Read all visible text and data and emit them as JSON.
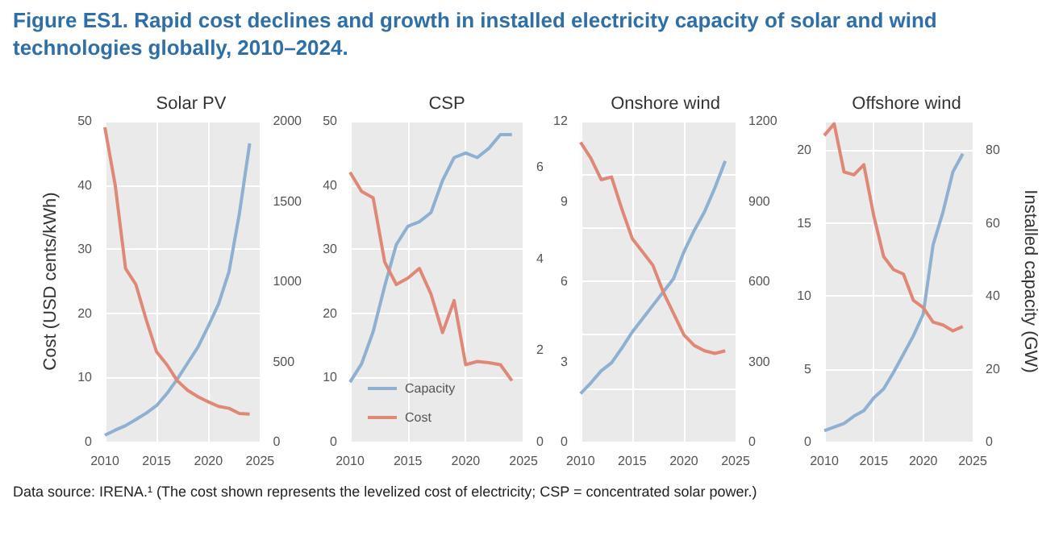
{
  "chart_data": [
    {
      "type": "line",
      "title": "Solar PV",
      "ylabel": "Cost (USD cents/kWh)",
      "annotations": [
        "Figure ES1. Rapid cost declines and growth in installed electricity capacity of solar and wind technologies globally, 2010–2024.",
        "Data source: IRENA.¹ (The cost shown represents the levelized cost of electricity; CSP = concentrated solar power.)"
      ],
      "x": [
        2010,
        2011,
        2012,
        2013,
        2014,
        2015,
        2016,
        2017,
        2018,
        2019,
        2020,
        2021,
        2022,
        2023,
        2024
      ],
      "xlim": [
        2010,
        2025
      ],
      "xticks": [
        2010,
        2015,
        2020,
        2025
      ],
      "ylim": [
        0,
        50
      ],
      "yticks": [
        0,
        10,
        20,
        30,
        40,
        50
      ],
      "y2lim": [
        0,
        2000
      ],
      "y2ticks": [
        0,
        500,
        1000,
        1500,
        2000
      ],
      "grid": true,
      "legend": false,
      "series": [
        {
          "color": "#8fb0d0",
          "axis": "y2",
          "values": [
            40,
            72,
            100,
            138,
            178,
            225,
            300,
            390,
            490,
            590,
            720,
            860,
            1060,
            1420,
            1860
          ]
        },
        {
          "color": "#e08878",
          "values": [
            49,
            40,
            27,
            24.5,
            19,
            14,
            12,
            9.5,
            8,
            7,
            6.2,
            5.5,
            5.2,
            4.4,
            4.3
          ]
        }
      ]
    },
    {
      "type": "line",
      "title": "CSP",
      "x": [
        2010,
        2011,
        2012,
        2013,
        2014,
        2015,
        2016,
        2017,
        2018,
        2019,
        2020,
        2021,
        2022,
        2023,
        2024
      ],
      "xlim": [
        2010,
        2025
      ],
      "xticks": [
        2010,
        2015,
        2020,
        2025
      ],
      "ylim": [
        0,
        50
      ],
      "yticks": [
        0,
        10,
        20,
        30,
        40,
        50
      ],
      "y2lim": [
        0,
        7
      ],
      "y2ticks": [
        0,
        2,
        4,
        6
      ],
      "grid": true,
      "legend": "bottom left",
      "series": [
        {
          "name": "Capacity",
          "color": "#8fb0d0",
          "axis": "y2",
          "values": [
            1.3,
            1.7,
            2.4,
            3.4,
            4.3,
            4.7,
            4.8,
            5.0,
            5.7,
            6.2,
            6.3,
            6.2,
            6.4,
            6.7,
            6.7
          ]
        },
        {
          "name": "Cost",
          "color": "#e08878",
          "values": [
            42,
            39,
            38,
            28,
            24.5,
            25.5,
            27,
            23,
            17,
            22,
            12,
            12.5,
            12.3,
            12,
            9.5
          ]
        }
      ]
    },
    {
      "type": "line",
      "title": "Onshore wind",
      "x": [
        2010,
        2011,
        2012,
        2013,
        2014,
        2015,
        2016,
        2017,
        2018,
        2019,
        2020,
        2021,
        2022,
        2023,
        2024
      ],
      "xlim": [
        2010,
        2025
      ],
      "xticks": [
        2010,
        2015,
        2020,
        2025
      ],
      "ylim": [
        0,
        12
      ],
      "yticks": [
        0,
        3,
        6,
        9,
        12
      ],
      "y2lim": [
        0,
        1200
      ],
      "y2ticks": [
        0,
        300,
        600,
        900,
        1200
      ],
      "grid": true,
      "legend": false,
      "series": [
        {
          "color": "#8fb0d0",
          "axis": "y2",
          "values": [
            180,
            220,
            265,
            295,
            350,
            410,
            460,
            510,
            560,
            610,
            710,
            790,
            860,
            950,
            1050
          ]
        },
        {
          "color": "#e08878",
          "values": [
            11.2,
            10.6,
            9.8,
            9.9,
            8.7,
            7.6,
            7.1,
            6.6,
            5.6,
            4.8,
            4.0,
            3.6,
            3.4,
            3.3,
            3.4
          ]
        }
      ]
    },
    {
      "type": "line",
      "title": "Offshore wind",
      "y2label": "Installed capacity (GW)",
      "x": [
        2010,
        2011,
        2012,
        2013,
        2014,
        2015,
        2016,
        2017,
        2018,
        2019,
        2020,
        2021,
        2022,
        2023,
        2024
      ],
      "xlim": [
        2010,
        2025
      ],
      "xticks": [
        2010,
        2015,
        2020,
        2025
      ],
      "ylim": [
        0,
        22
      ],
      "yticks": [
        0,
        5,
        10,
        15,
        20
      ],
      "y2lim": [
        0,
        88
      ],
      "y2ticks": [
        0,
        20,
        40,
        60,
        80
      ],
      "grid": true,
      "legend": false,
      "series": [
        {
          "color": "#8fb0d0",
          "axis": "y2",
          "values": [
            3,
            4,
            5,
            7,
            8.5,
            12,
            14.5,
            19,
            24,
            29,
            35,
            54,
            63,
            74,
            79
          ]
        },
        {
          "color": "#e08878",
          "values": [
            21,
            21.8,
            18.5,
            18.3,
            19,
            15.5,
            12.7,
            11.8,
            11.5,
            9.7,
            9.2,
            8.2,
            8.0,
            7.6,
            7.9
          ]
        }
      ]
    }
  ]
}
